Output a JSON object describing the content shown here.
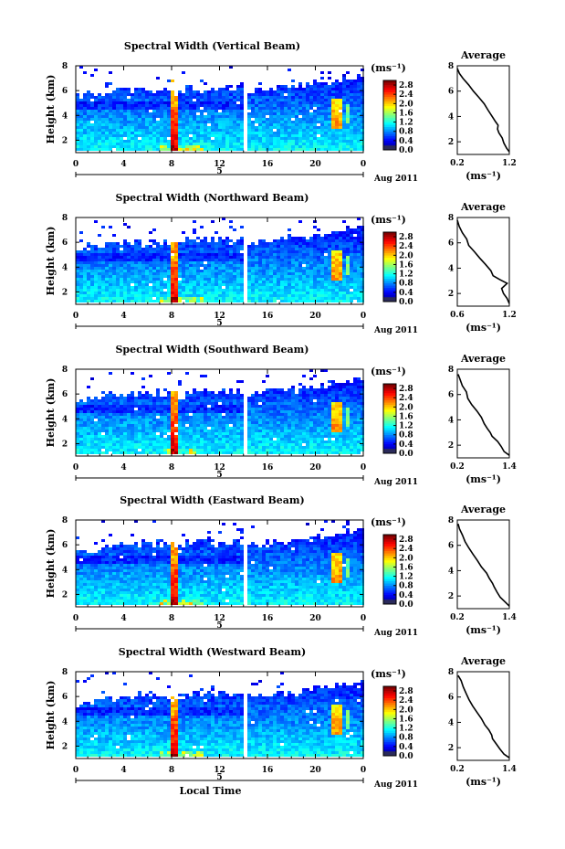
{
  "chart_data": [
    {
      "type": "heatmap",
      "title": "Spectral Width (Vertical Beam)",
      "ylabel": "Height (km)",
      "xticks": [
        "0",
        "4",
        "8",
        "12",
        "16",
        "20",
        "0"
      ],
      "yticks": [
        "2",
        "4",
        "6",
        "8"
      ],
      "xlim": [
        0,
        24
      ],
      "ylim": [
        1,
        8
      ],
      "day_label": "5",
      "date_label": "Aug 2011",
      "colorbar": {
        "unit": "(ms⁻¹)",
        "ticks": [
          "0.0",
          "0.4",
          "0.8",
          "1.2",
          "1.6",
          "2.0",
          "2.4",
          "2.8"
        ],
        "range": [
          0,
          3.0
        ]
      },
      "average": {
        "title": "Average",
        "xlabel": "(ms⁻¹)",
        "xticks": [
          "0.2",
          "1.2"
        ],
        "xlim": [
          0.2,
          1.2
        ],
        "yticks": [
          "2",
          "4",
          "6",
          "8"
        ],
        "ylim": [
          1,
          8
        ],
        "profile": [
          [
            1.2,
            1.2
          ],
          [
            1.13,
            1.5
          ],
          [
            1.08,
            1.9
          ],
          [
            1.05,
            2.3
          ],
          [
            1.0,
            2.7
          ],
          [
            0.98,
            3.0
          ],
          [
            1.0,
            3.3
          ],
          [
            0.92,
            3.6
          ],
          [
            0.88,
            4.0
          ],
          [
            0.8,
            4.5
          ],
          [
            0.72,
            5.0
          ],
          [
            0.62,
            5.5
          ],
          [
            0.52,
            6.0
          ],
          [
            0.42,
            6.5
          ],
          [
            0.32,
            7.0
          ],
          [
            0.24,
            7.4
          ],
          [
            0.2,
            7.8
          ]
        ]
      }
    },
    {
      "type": "heatmap",
      "title": "Spectral Width (Northward Beam)",
      "ylabel": "Height (km)",
      "xticks": [
        "0",
        "4",
        "8",
        "12",
        "16",
        "20",
        "0"
      ],
      "yticks": [
        "2",
        "4",
        "6",
        "8"
      ],
      "xlim": [
        0,
        24
      ],
      "ylim": [
        1,
        8
      ],
      "day_label": "5",
      "date_label": "Aug 2011",
      "colorbar": {
        "unit": "(ms⁻¹)",
        "ticks": [
          "0.0",
          "0.4",
          "0.8",
          "1.2",
          "1.6",
          "2.0",
          "2.4",
          "2.8"
        ],
        "range": [
          0,
          3.0
        ]
      },
      "average": {
        "title": "Average",
        "xlabel": "(ms⁻¹)",
        "xticks": [
          "0.6",
          "1.2"
        ],
        "xlim": [
          0.6,
          1.2
        ],
        "yticks": [
          "2",
          "4",
          "6",
          "8"
        ],
        "ylim": [
          1,
          8
        ],
        "profile": [
          [
            1.2,
            1.2
          ],
          [
            1.17,
            1.6
          ],
          [
            1.14,
            2.0
          ],
          [
            1.12,
            2.4
          ],
          [
            1.18,
            2.8
          ],
          [
            1.1,
            3.1
          ],
          [
            1.02,
            3.4
          ],
          [
            0.98,
            3.8
          ],
          [
            0.92,
            4.3
          ],
          [
            0.86,
            4.8
          ],
          [
            0.8,
            5.3
          ],
          [
            0.74,
            5.8
          ],
          [
            0.7,
            6.3
          ],
          [
            0.66,
            6.8
          ],
          [
            0.63,
            7.3
          ],
          [
            0.6,
            7.8
          ]
        ]
      }
    },
    {
      "type": "heatmap",
      "title": "Spectral Width (Southward Beam)",
      "ylabel": "Height (km)",
      "xticks": [
        "0",
        "4",
        "8",
        "12",
        "16",
        "20",
        "0"
      ],
      "yticks": [
        "2",
        "4",
        "6",
        "8"
      ],
      "xlim": [
        0,
        24
      ],
      "ylim": [
        1,
        8
      ],
      "day_label": "5",
      "date_label": "Aug 2011",
      "colorbar": {
        "unit": "(ms⁻¹)",
        "ticks": [
          "0.0",
          "0.4",
          "0.8",
          "1.2",
          "1.6",
          "2.0",
          "2.4",
          "2.8"
        ],
        "range": [
          0,
          3.0
        ]
      },
      "average": {
        "title": "Average",
        "xlabel": "(ms⁻¹)",
        "xticks": [
          "0.2",
          "1.4"
        ],
        "xlim": [
          0.2,
          1.4
        ],
        "yticks": [
          "2",
          "4",
          "6",
          "8"
        ],
        "ylim": [
          1,
          8
        ],
        "profile": [
          [
            1.4,
            1.2
          ],
          [
            1.3,
            1.5
          ],
          [
            1.2,
            1.9
          ],
          [
            1.12,
            2.3
          ],
          [
            1.0,
            2.7
          ],
          [
            0.98,
            3.0
          ],
          [
            0.9,
            3.3
          ],
          [
            0.84,
            3.7
          ],
          [
            0.74,
            4.2
          ],
          [
            0.64,
            4.7
          ],
          [
            0.54,
            5.2
          ],
          [
            0.46,
            5.7
          ],
          [
            0.4,
            6.2
          ],
          [
            0.32,
            6.7
          ],
          [
            0.26,
            7.2
          ],
          [
            0.22,
            7.6
          ]
        ]
      }
    },
    {
      "type": "heatmap",
      "title": "Spectral Width (Eastward Beam)",
      "ylabel": "Height (km)",
      "xticks": [
        "0",
        "4",
        "8",
        "12",
        "16",
        "20",
        "0"
      ],
      "yticks": [
        "2",
        "4",
        "6",
        "8"
      ],
      "xlim": [
        0,
        24
      ],
      "ylim": [
        1,
        8
      ],
      "day_label": "5",
      "date_label": "Aug 2011",
      "colorbar": {
        "unit": "(ms⁻¹)",
        "ticks": [
          "0.0",
          "0.4",
          "0.8",
          "1.2",
          "1.6",
          "2.0",
          "2.4",
          "2.8"
        ],
        "range": [
          0,
          3.0
        ]
      },
      "average": {
        "title": "Average",
        "xlabel": "(ms⁻¹)",
        "xticks": [
          "0.2",
          "1.4"
        ],
        "xlim": [
          0.2,
          1.4
        ],
        "yticks": [
          "2",
          "4",
          "6",
          "8"
        ],
        "ylim": [
          1,
          8
        ],
        "profile": [
          [
            1.4,
            1.2
          ],
          [
            1.3,
            1.5
          ],
          [
            1.2,
            1.9
          ],
          [
            1.1,
            2.3
          ],
          [
            1.04,
            2.7
          ],
          [
            1.02,
            3.0
          ],
          [
            0.94,
            3.4
          ],
          [
            0.86,
            3.8
          ],
          [
            0.76,
            4.3
          ],
          [
            0.66,
            4.8
          ],
          [
            0.56,
            5.3
          ],
          [
            0.48,
            5.8
          ],
          [
            0.4,
            6.3
          ],
          [
            0.32,
            6.8
          ],
          [
            0.26,
            7.3
          ],
          [
            0.22,
            7.7
          ]
        ]
      }
    },
    {
      "type": "heatmap",
      "title": "Spectral Width (Westward Beam)",
      "ylabel": "Height (km)",
      "xlabel": "Local Time",
      "xticks": [
        "0",
        "4",
        "8",
        "12",
        "16",
        "20",
        "0"
      ],
      "yticks": [
        "2",
        "4",
        "6",
        "8"
      ],
      "xlim": [
        0,
        24
      ],
      "ylim": [
        1,
        8
      ],
      "day_label": "5",
      "date_label": "Aug 2011",
      "colorbar": {
        "unit": "(ms⁻¹)",
        "ticks": [
          "0.0",
          "0.4",
          "0.8",
          "1.2",
          "1.6",
          "2.0",
          "2.4",
          "2.8"
        ],
        "range": [
          0,
          3.0
        ]
      },
      "average": {
        "title": "Average",
        "xlabel": "(ms⁻¹)",
        "xticks": [
          "0.2",
          "1.4"
        ],
        "xlim": [
          0.2,
          1.4
        ],
        "yticks": [
          "2",
          "4",
          "6",
          "8"
        ],
        "ylim": [
          1,
          8
        ],
        "profile": [
          [
            1.4,
            1.2
          ],
          [
            1.28,
            1.5
          ],
          [
            1.18,
            1.9
          ],
          [
            1.1,
            2.3
          ],
          [
            1.02,
            2.7
          ],
          [
            1.0,
            3.0
          ],
          [
            0.92,
            3.4
          ],
          [
            0.84,
            3.8
          ],
          [
            0.74,
            4.3
          ],
          [
            0.64,
            4.8
          ],
          [
            0.55,
            5.3
          ],
          [
            0.47,
            5.8
          ],
          [
            0.4,
            6.3
          ],
          [
            0.33,
            6.8
          ],
          [
            0.27,
            7.3
          ],
          [
            0.22,
            7.7
          ]
        ]
      }
    }
  ]
}
